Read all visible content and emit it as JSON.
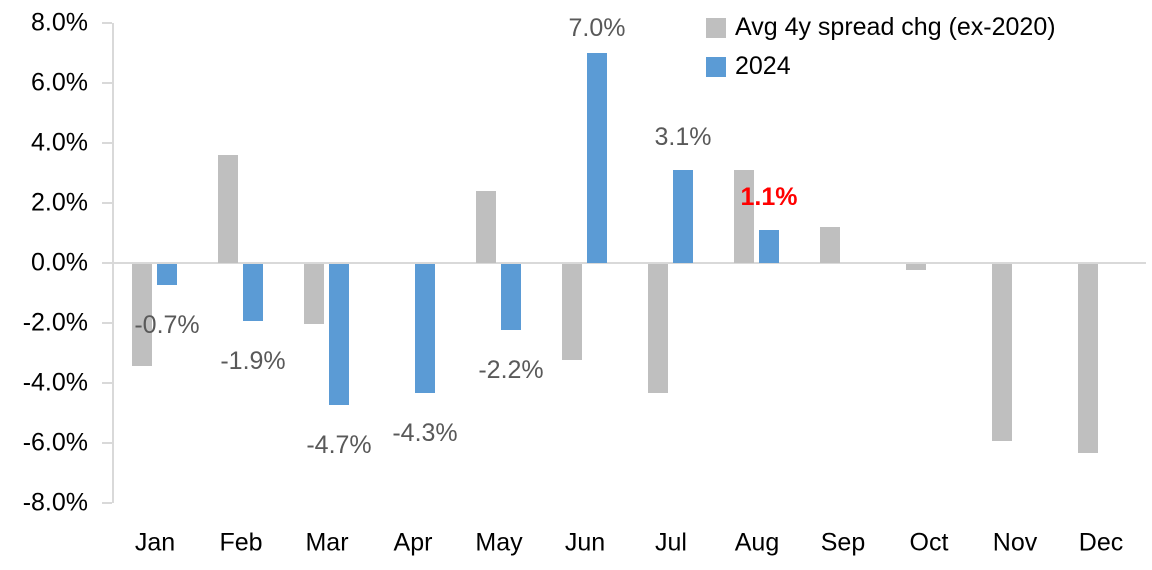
{
  "chart_data": {
    "type": "bar",
    "title": "",
    "xlabel": "",
    "ylabel": "",
    "categories": [
      "Jan",
      "Feb",
      "Mar",
      "Apr",
      "May",
      "Jun",
      "Jul",
      "Aug",
      "Sep",
      "Oct",
      "Nov",
      "Dec"
    ],
    "series": [
      {
        "name": "Avg 4y spread chg (ex-2020)",
        "color": "#bfbfbf",
        "values": [
          -3.4,
          3.6,
          -2.0,
          0.0,
          2.4,
          -3.2,
          -4.3,
          3.1,
          1.2,
          -0.2,
          -5.9,
          -6.3
        ]
      },
      {
        "name": "2024",
        "color": "#5b9bd5",
        "values": [
          -0.7,
          -1.9,
          -4.7,
          -4.3,
          -2.2,
          7.0,
          3.1,
          1.1,
          null,
          null,
          null,
          null
        ]
      }
    ],
    "data_labels": [
      {
        "category": "Jan",
        "series": "2024",
        "text": "-0.7%",
        "color": "#595959",
        "bold": false
      },
      {
        "category": "Feb",
        "series": "2024",
        "text": "-1.9%",
        "color": "#595959",
        "bold": false
      },
      {
        "category": "Mar",
        "series": "2024",
        "text": "-4.7%",
        "color": "#595959",
        "bold": false
      },
      {
        "category": "Apr",
        "series": "2024",
        "text": "-4.3%",
        "color": "#595959",
        "bold": false
      },
      {
        "category": "May",
        "series": "2024",
        "text": "-2.2%",
        "color": "#595959",
        "bold": false
      },
      {
        "category": "Jun",
        "series": "2024",
        "text": "7.0%",
        "color": "#595959",
        "bold": false
      },
      {
        "category": "Jul",
        "series": "2024",
        "text": "3.1%",
        "color": "#595959",
        "bold": false
      },
      {
        "category": "Aug",
        "series": "2024",
        "text": "1.1%",
        "color": "#ff0000",
        "bold": true
      }
    ],
    "ylim": [
      -8,
      8
    ],
    "ytick_step": 2,
    "ytick_labels": [
      "8.0%",
      "6.0%",
      "4.0%",
      "2.0%",
      "0.0%",
      "-2.0%",
      "-4.0%",
      "-6.0%",
      "-8.0%"
    ],
    "legend": {
      "position": "top-right",
      "entries": [
        "Avg 4y spread chg (ex-2020)",
        "2024"
      ]
    },
    "grid": "zero-line-only",
    "axis_color": "#d9d9d9",
    "tick_label_color": "#000000"
  }
}
